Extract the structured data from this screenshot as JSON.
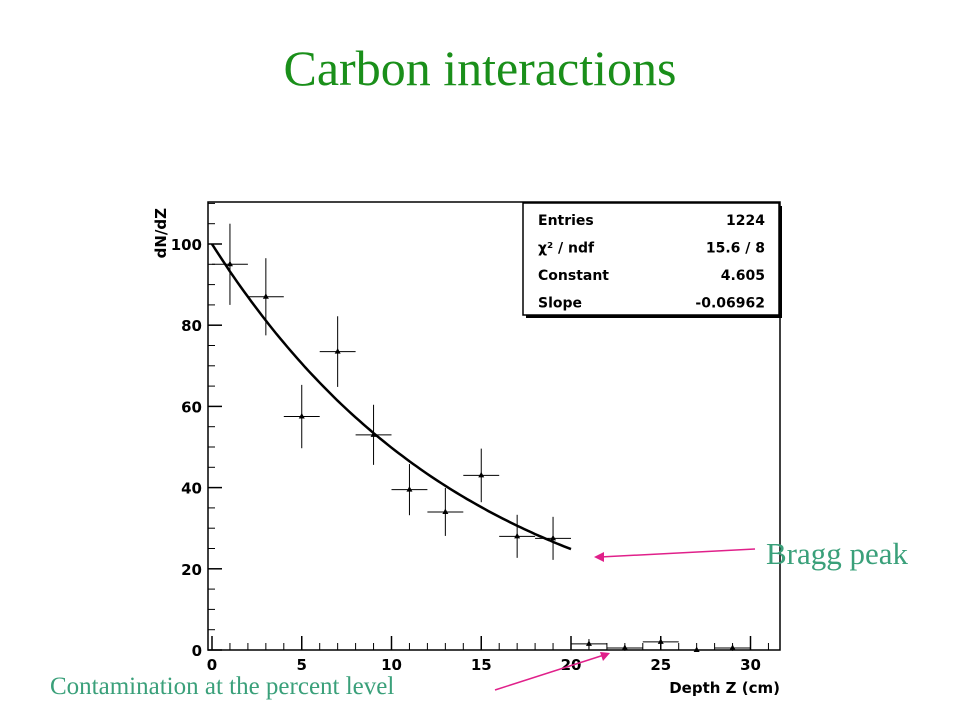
{
  "slide": {
    "title": "Carbon interactions",
    "title_color": "#1a8f1a"
  },
  "annotations": {
    "bragg": "Bragg peak",
    "contamination": "Contamination at the percent level",
    "text_color": "#3aa07a",
    "arrow_color": "#e0208a"
  },
  "chart_data": {
    "type": "scatter",
    "xlabel": "Depth Z (cm)",
    "ylabel": "dN/dZ",
    "xlim": [
      0,
      31
    ],
    "ylim": [
      0,
      110
    ],
    "xticks": [
      0,
      5,
      10,
      15,
      20,
      25,
      30
    ],
    "yticks": [
      0,
      20,
      40,
      60,
      80,
      100
    ],
    "grid": false,
    "points": [
      {
        "x": 1,
        "y": 95,
        "err": 10
      },
      {
        "x": 3,
        "y": 87,
        "err": 9.5
      },
      {
        "x": 5,
        "y": 57.5,
        "err": 7.8
      },
      {
        "x": 7,
        "y": 73.5,
        "err": 8.7
      },
      {
        "x": 9,
        "y": 53,
        "err": 7.4
      },
      {
        "x": 11,
        "y": 39.5,
        "err": 6.3
      },
      {
        "x": 13,
        "y": 34,
        "err": 5.9
      },
      {
        "x": 15,
        "y": 43,
        "err": 6.6
      },
      {
        "x": 17,
        "y": 28,
        "err": 5.3
      },
      {
        "x": 19,
        "y": 27.5,
        "err": 5.3
      },
      {
        "x": 21,
        "y": 1.5,
        "err": 1.2
      },
      {
        "x": 23,
        "y": 0.5,
        "err": 0.7
      },
      {
        "x": 25,
        "y": 2,
        "err": 1.4
      },
      {
        "x": 27,
        "y": 0,
        "err": 0
      },
      {
        "x": 29,
        "y": 0.5,
        "err": 0.7
      }
    ],
    "fit": {
      "function": "exp(Constant + Slope*x)",
      "constant": 4.605,
      "slope": -0.06962,
      "x_range": [
        0,
        20
      ]
    },
    "stats_box": {
      "position": "top-right",
      "rows": [
        {
          "label": "Entries",
          "value": "1224"
        },
        {
          "label": "χ² / ndf",
          "value": "15.6 / 8"
        },
        {
          "label": "Constant",
          "value": "4.605"
        },
        {
          "label": "Slope",
          "value": "-0.06962"
        }
      ]
    }
  }
}
